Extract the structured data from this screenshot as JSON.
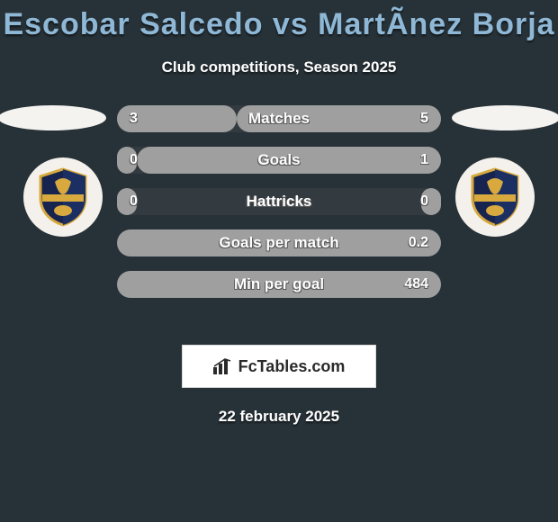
{
  "background_color": "#273238",
  "title": {
    "text": "Escobar Salcedo vs MartÃ­nez Borja",
    "color": "#8fb8d6",
    "fontsize": 34,
    "fontweight": 900
  },
  "subtitle": {
    "text": "Club competitions, Season 2025",
    "color": "#ffffff",
    "fontsize": 17
  },
  "date": {
    "text": "22 february 2025",
    "color": "#ffffff",
    "fontsize": 17
  },
  "brand": {
    "text": "FcTables.com",
    "box_bg": "#ffffff",
    "text_color": "#2a2a2a"
  },
  "teams": {
    "left": {
      "shield_primary": "#16244f",
      "shield_accent": "#d7a93e",
      "banner": "AGUILAS DORADAS"
    },
    "right": {
      "shield_primary": "#16244f",
      "shield_accent": "#d7a93e",
      "banner": "AGUILAS DORADAS"
    }
  },
  "bars": {
    "track_color": "#333a40",
    "fill_color_left": "#9f9f9f",
    "fill_color_right": "#9f9f9f",
    "height": 30,
    "radius": 15,
    "gap": 16,
    "label_fontsize": 17,
    "value_fontsize": 16,
    "rows": [
      {
        "label": "Matches",
        "left": "3",
        "right": "5",
        "left_pct": 37,
        "right_pct": 63
      },
      {
        "label": "Goals",
        "left": "0",
        "right": "1",
        "left_pct": 6,
        "right_pct": 94
      },
      {
        "label": "Hattricks",
        "left": "0",
        "right": "0",
        "left_pct": 6,
        "right_pct": 6
      },
      {
        "label": "Goals per match",
        "left": "",
        "right": "0.2",
        "left_pct": 0,
        "right_pct": 100
      },
      {
        "label": "Min per goal",
        "left": "",
        "right": "484",
        "left_pct": 0,
        "right_pct": 100
      }
    ]
  }
}
